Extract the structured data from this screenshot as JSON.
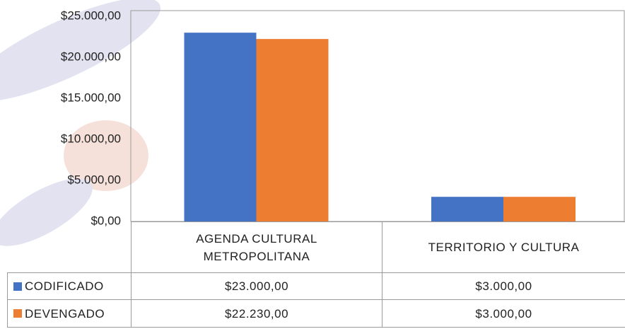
{
  "chart_data": {
    "type": "bar",
    "categories": [
      "AGENDA CULTURAL METROPOLITANA",
      "TERRITORIO Y CULTURA"
    ],
    "series": [
      {
        "name": "CODIFICADO",
        "color": "#4472c4",
        "values": [
          23000,
          3000
        ],
        "value_labels": [
          "$23.000,00",
          "$3.000,00"
        ]
      },
      {
        "name": "DEVENGADO",
        "color": "#ed7d31",
        "values": [
          22230,
          3000
        ],
        "value_labels": [
          "$22.230,00",
          "$3.000,00"
        ]
      }
    ],
    "ylim": [
      0,
      25000
    ],
    "yticks": [
      {
        "value": 0,
        "label": "$0,00"
      },
      {
        "value": 5000,
        "label": "$5.000,00"
      },
      {
        "value": 10000,
        "label": "$10.000,00"
      },
      {
        "value": 15000,
        "label": "$15.000,00"
      },
      {
        "value": 20000,
        "label": "$20.000,00"
      },
      {
        "value": 25000,
        "label": "$25.000,00"
      }
    ],
    "grid": false
  }
}
